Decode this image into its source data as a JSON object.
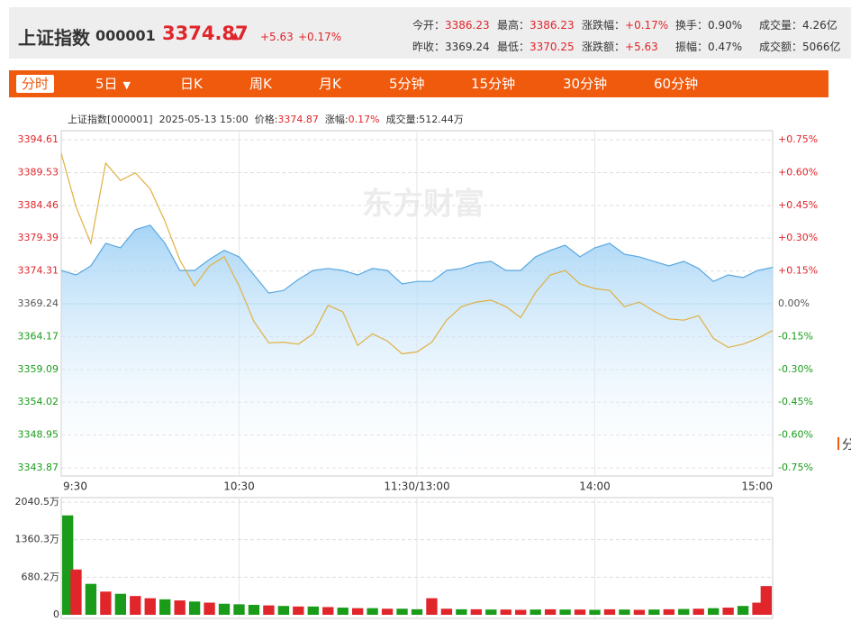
{
  "header": {
    "name": "上证指数",
    "code": "000001",
    "price": "3374.87",
    "change": "+5.63",
    "change_pct": "+0.17%",
    "stats": [
      {
        "label": "今开：",
        "value": "3386.23",
        "color": "#e0252b"
      },
      {
        "label": "最高：",
        "value": "3386.23",
        "color": "#e0252b"
      },
      {
        "label": "涨跌幅：",
        "value": "+0.17%",
        "color": "#e0252b"
      },
      {
        "label": "换手：",
        "value": "0.90%",
        "color": "#333333"
      },
      {
        "label": "成交量：",
        "value": "4.26亿",
        "color": "#333333"
      },
      {
        "label": "昨收：",
        "value": "3369.24",
        "color": "#333333"
      },
      {
        "label": "最低：",
        "value": "3370.25",
        "color": "#e0252b"
      },
      {
        "label": "涨跌额：",
        "value": "+5.63",
        "color": "#e0252b"
      },
      {
        "label": "振幅：",
        "value": "0.47%",
        "color": "#333333"
      },
      {
        "label": "成交额：",
        "value": "5066亿",
        "color": "#333333"
      }
    ]
  },
  "tabs": [
    "分时",
    "5日",
    "日K",
    "周K",
    "月K",
    "5分钟",
    "15分钟",
    "30分钟",
    "60分钟"
  ],
  "side_tab": "分",
  "chart_data": [
    {
      "type": "line",
      "watermark": "东方财富",
      "info": {
        "name": "上证指数[000001]",
        "time": "2025-05-13 15:00",
        "price_label": "价格:",
        "price": "3374.87",
        "change_label": "涨幅:",
        "change": "0.17%",
        "volume": "成交量:512.44万"
      },
      "x": [
        0,
        5,
        10,
        15,
        20,
        25,
        30,
        35,
        40,
        45,
        50,
        55,
        60,
        65,
        70,
        75,
        80,
        85,
        90,
        95,
        100,
        105,
        110,
        115,
        120,
        125,
        130,
        135,
        140,
        145,
        150,
        155,
        160,
        165,
        170,
        175,
        180,
        185,
        190,
        195,
        200,
        205,
        210,
        215,
        220,
        225,
        230,
        235,
        240
      ],
      "series": [
        {
          "color": "#5aa8e0",
          "area": true,
          "values": [
            3374.4,
            3373.7,
            3375.1,
            3378.6,
            3377.9,
            3380.7,
            3381.4,
            3378.6,
            3374.4,
            3374.4,
            3376.1,
            3377.5,
            3376.5,
            3373.7,
            3370.9,
            3371.3,
            3373.0,
            3374.4,
            3374.7,
            3374.4,
            3373.7,
            3374.7,
            3374.4,
            3372.3,
            3372.7,
            3372.7,
            3374.4,
            3374.7,
            3375.5,
            3375.8,
            3374.4,
            3374.4,
            3376.5,
            3377.5,
            3378.3,
            3376.5,
            3377.9,
            3378.6,
            3376.9,
            3376.5,
            3375.8,
            3375.1,
            3375.8,
            3374.7,
            3372.7,
            3373.7,
            3373.3,
            3374.4,
            3374.87
          ]
        },
        {
          "color": "#e0b040",
          "area": false,
          "values": [
            3392.5,
            3384.2,
            3378.6,
            3391.0,
            3388.3,
            3389.5,
            3387.0,
            3382.0,
            3376.0,
            3372.0,
            3375.1,
            3376.5,
            3372.0,
            3366.5,
            3363.2,
            3363.3,
            3363.0,
            3364.6,
            3369.0,
            3368.0,
            3362.8,
            3364.6,
            3363.5,
            3361.5,
            3361.8,
            3363.3,
            3366.7,
            3368.8,
            3369.5,
            3369.8,
            3368.8,
            3367.1,
            3371.0,
            3373.7,
            3374.4,
            3372.3,
            3371.6,
            3371.3,
            3368.8,
            3369.5,
            3368.1,
            3366.9,
            3366.7,
            3367.4,
            3363.9,
            3362.5,
            3363.0,
            3363.9,
            3365.1
          ]
        }
      ],
      "xlim": [
        0,
        240
      ],
      "xticks": [
        {
          "value": 0,
          "label": "9:30"
        },
        {
          "value": 60,
          "label": "10:30"
        },
        {
          "value": 120,
          "label": "11:30/13:00"
        },
        {
          "value": 180,
          "label": "14:00"
        },
        {
          "value": 240,
          "label": "15:00"
        }
      ],
      "ylim": [
        3343.87,
        3394.61
      ],
      "yticks": [
        3394.61,
        3389.53,
        3384.46,
        3379.39,
        3374.31,
        3369.24,
        3364.17,
        3359.09,
        3354.02,
        3348.95,
        3343.87
      ],
      "y2lim": [
        -0.75,
        0.75
      ],
      "y2ticks": [
        {
          "value": 0.75,
          "label": "+0.75%"
        },
        {
          "value": 0.6,
          "label": "+0.60%"
        },
        {
          "value": 0.45,
          "label": "+0.45%"
        },
        {
          "value": 0.3,
          "label": "+0.30%"
        },
        {
          "value": 0.15,
          "label": "+0.15%"
        },
        {
          "value": 0,
          "label": "0.00%"
        },
        {
          "value": -0.15,
          "label": "-0.15%"
        },
        {
          "value": -0.3,
          "label": "-0.30%"
        },
        {
          "value": -0.45,
          "label": "-0.45%"
        },
        {
          "value": -0.6,
          "label": "-0.60%"
        },
        {
          "value": -0.75,
          "label": "-0.75%"
        }
      ],
      "grid": true
    },
    {
      "type": "bar",
      "x": [
        0,
        5,
        10,
        15,
        20,
        25,
        30,
        35,
        40,
        45,
        50,
        55,
        60,
        65,
        70,
        75,
        80,
        85,
        90,
        95,
        100,
        105,
        110,
        115,
        120,
        125,
        130,
        135,
        140,
        145,
        150,
        155,
        160,
        165,
        170,
        175,
        180,
        185,
        190,
        195,
        200,
        205,
        210,
        215,
        220,
        225,
        230,
        235,
        240
      ],
      "values": [
        1800,
        820,
        560,
        420,
        380,
        340,
        300,
        280,
        260,
        240,
        220,
        200,
        190,
        180,
        170,
        160,
        150,
        150,
        140,
        130,
        120,
        120,
        110,
        110,
        100,
        300,
        110,
        100,
        100,
        95,
        95,
        90,
        95,
        100,
        95,
        95,
        90,
        100,
        95,
        90,
        95,
        100,
        105,
        110,
        120,
        130,
        160,
        220,
        520
      ],
      "colors": [
        "#1a9c1a",
        "#e0252b",
        "#1a9c1a",
        "#e0252b",
        "#1a9c1a",
        "#e0252b",
        "#e0252b",
        "#1a9c1a",
        "#e0252b",
        "#1a9c1a",
        "#e0252b",
        "#1a9c1a",
        "#1a9c1a",
        "#1a9c1a",
        "#e0252b",
        "#1a9c1a",
        "#e0252b",
        "#1a9c1a",
        "#e0252b",
        "#1a9c1a",
        "#e0252b",
        "#1a9c1a",
        "#e0252b",
        "#1a9c1a",
        "#1a9c1a",
        "#e0252b",
        "#e0252b",
        "#1a9c1a",
        "#e0252b",
        "#1a9c1a",
        "#e0252b",
        "#e0252b",
        "#1a9c1a",
        "#e0252b",
        "#1a9c1a",
        "#e0252b",
        "#1a9c1a",
        "#e0252b",
        "#1a9c1a",
        "#e0252b",
        "#1a9c1a",
        "#e0252b",
        "#1a9c1a",
        "#e0252b",
        "#1a9c1a",
        "#e0252b",
        "#1a9c1a",
        "#e0252b",
        "#e0252b"
      ],
      "xlim": [
        0,
        240
      ],
      "ylim": [
        0,
        2040.5
      ],
      "yticks": [
        {
          "value": 2040.5,
          "label": "2040.5万"
        },
        {
          "value": 1360.3,
          "label": "1360.3万"
        },
        {
          "value": 680.2,
          "label": "680.2万"
        },
        0
      ],
      "grid": true
    }
  ]
}
